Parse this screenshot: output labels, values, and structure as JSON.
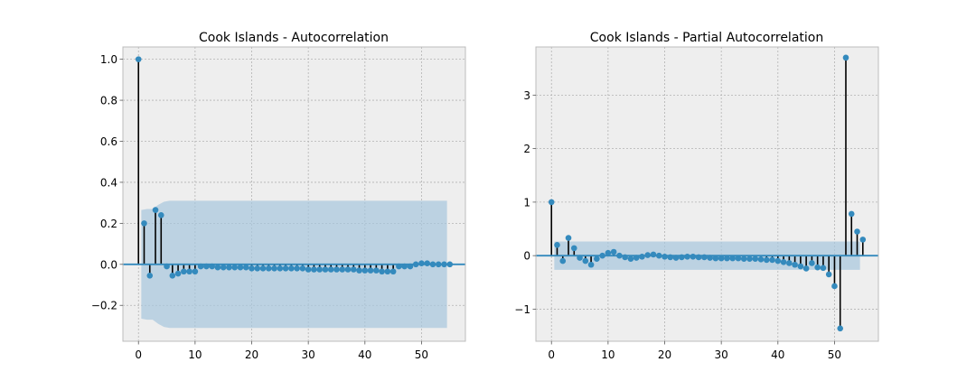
{
  "colors": {
    "figure_bg": "#ffffff",
    "axes_bg": "#eeeeee",
    "axes_edge": "#bcbcbc",
    "grid": "#b2b2b2",
    "stem": "#000000",
    "marker": "#348abd",
    "zero_line": "#348abd",
    "confidence_band": "#a7c6dd"
  },
  "chart_data": [
    {
      "type": "stem",
      "title": "Cook Islands - Autocorrelation",
      "xlabel": "",
      "ylabel": "",
      "xlim": [
        -2.75,
        57.75
      ],
      "ylim": [
        -0.375,
        1.06
      ],
      "xticks": [
        0,
        10,
        20,
        30,
        40,
        50
      ],
      "yticks": [
        -0.2,
        0.0,
        0.2,
        0.4,
        0.6,
        0.8,
        1.0
      ],
      "ytick_labels": [
        "−0.2",
        "0.0",
        "0.2",
        "0.4",
        "0.6",
        "0.8",
        "1.0"
      ],
      "grid": true,
      "lags": [
        0,
        1,
        2,
        3,
        4,
        5,
        6,
        7,
        8,
        9,
        10,
        11,
        12,
        13,
        14,
        15,
        16,
        17,
        18,
        19,
        20,
        21,
        22,
        23,
        24,
        25,
        26,
        27,
        28,
        29,
        30,
        31,
        32,
        33,
        34,
        35,
        36,
        37,
        38,
        39,
        40,
        41,
        42,
        43,
        44,
        45,
        46,
        47,
        48,
        49,
        50,
        51,
        52,
        53,
        54,
        55
      ],
      "values": [
        1.0,
        0.2,
        -0.055,
        0.265,
        0.24,
        -0.01,
        -0.055,
        -0.045,
        -0.035,
        -0.035,
        -0.035,
        -0.01,
        -0.01,
        -0.01,
        -0.015,
        -0.015,
        -0.015,
        -0.015,
        -0.015,
        -0.015,
        -0.02,
        -0.02,
        -0.02,
        -0.02,
        -0.02,
        -0.02,
        -0.02,
        -0.02,
        -0.02,
        -0.02,
        -0.025,
        -0.025,
        -0.025,
        -0.025,
        -0.025,
        -0.025,
        -0.025,
        -0.025,
        -0.025,
        -0.03,
        -0.03,
        -0.03,
        -0.03,
        -0.035,
        -0.035,
        -0.035,
        -0.01,
        -0.01,
        -0.01,
        0.0,
        0.005,
        0.005,
        0.0,
        0.0,
        0.0,
        0.0
      ],
      "confint": {
        "lags": [
          1,
          2,
          3,
          4,
          5,
          6,
          7,
          8,
          9,
          10,
          11,
          12,
          13,
          14,
          15,
          16,
          17,
          18,
          19,
          20,
          21,
          22,
          23,
          24,
          25,
          26,
          27,
          28,
          29,
          30,
          31,
          32,
          33,
          34,
          35,
          36,
          37,
          38,
          39,
          40,
          41,
          42,
          43,
          44,
          45,
          46,
          47,
          48,
          49,
          50,
          51,
          52,
          53,
          54,
          55
        ],
        "upper": [
          0.265,
          0.27,
          0.27,
          0.29,
          0.305,
          0.31,
          0.31,
          0.31,
          0.31,
          0.31,
          0.31,
          0.31,
          0.31,
          0.31,
          0.31,
          0.31,
          0.31,
          0.31,
          0.31,
          0.31,
          0.31,
          0.31,
          0.31,
          0.31,
          0.31,
          0.31,
          0.31,
          0.31,
          0.31,
          0.31,
          0.31,
          0.31,
          0.31,
          0.31,
          0.31,
          0.31,
          0.31,
          0.31,
          0.31,
          0.31,
          0.31,
          0.31,
          0.31,
          0.31,
          0.31,
          0.31,
          0.31,
          0.31,
          0.31,
          0.31,
          0.31,
          0.31,
          0.31,
          0.31,
          0.31
        ],
        "lower": [
          -0.265,
          -0.27,
          -0.27,
          -0.29,
          -0.305,
          -0.31,
          -0.31,
          -0.31,
          -0.31,
          -0.31,
          -0.31,
          -0.31,
          -0.31,
          -0.31,
          -0.31,
          -0.31,
          -0.31,
          -0.31,
          -0.31,
          -0.31,
          -0.31,
          -0.31,
          -0.31,
          -0.31,
          -0.31,
          -0.31,
          -0.31,
          -0.31,
          -0.31,
          -0.31,
          -0.31,
          -0.31,
          -0.31,
          -0.31,
          -0.31,
          -0.31,
          -0.31,
          -0.31,
          -0.31,
          -0.31,
          -0.31,
          -0.31,
          -0.31,
          -0.31,
          -0.31,
          -0.31,
          -0.31,
          -0.31,
          -0.31,
          -0.31,
          -0.31,
          -0.31,
          -0.31,
          -0.31,
          -0.31
        ]
      }
    },
    {
      "type": "stem",
      "title": "Cook Islands - Partial Autocorrelation",
      "xlabel": "",
      "ylabel": "",
      "xlim": [
        -2.75,
        57.75
      ],
      "ylim": [
        -1.6,
        3.9
      ],
      "xticks": [
        0,
        10,
        20,
        30,
        40,
        50
      ],
      "yticks": [
        -1,
        0,
        1,
        2,
        3
      ],
      "ytick_labels": [
        "−1",
        "0",
        "1",
        "2",
        "3"
      ],
      "grid": true,
      "lags": [
        0,
        1,
        2,
        3,
        4,
        5,
        6,
        7,
        8,
        9,
        10,
        11,
        12,
        13,
        14,
        15,
        16,
        17,
        18,
        19,
        20,
        21,
        22,
        23,
        24,
        25,
        26,
        27,
        28,
        29,
        30,
        31,
        32,
        33,
        34,
        35,
        36,
        37,
        38,
        39,
        40,
        41,
        42,
        43,
        44,
        45,
        46,
        47,
        48,
        49,
        50,
        51,
        52,
        53,
        54,
        55
      ],
      "values": [
        1.0,
        0.2,
        -0.1,
        0.33,
        0.14,
        -0.04,
        -0.1,
        -0.17,
        -0.06,
        0.0,
        0.05,
        0.07,
        0.0,
        -0.03,
        -0.06,
        -0.04,
        -0.02,
        0.01,
        0.02,
        0.0,
        -0.02,
        -0.03,
        -0.04,
        -0.03,
        -0.02,
        -0.02,
        -0.03,
        -0.03,
        -0.04,
        -0.05,
        -0.05,
        -0.05,
        -0.05,
        -0.05,
        -0.06,
        -0.06,
        -0.06,
        -0.07,
        -0.08,
        -0.08,
        -0.1,
        -0.12,
        -0.14,
        -0.17,
        -0.2,
        -0.24,
        -0.14,
        -0.22,
        -0.23,
        -0.35,
        -0.57,
        -1.36,
        3.7,
        0.78,
        0.45,
        0.3
      ],
      "confint": {
        "lags": [
          1,
          2,
          3,
          4,
          5,
          6,
          7,
          8,
          9,
          10,
          11,
          12,
          13,
          14,
          15,
          16,
          17,
          18,
          19,
          20,
          21,
          22,
          23,
          24,
          25,
          26,
          27,
          28,
          29,
          30,
          31,
          32,
          33,
          34,
          35,
          36,
          37,
          38,
          39,
          40,
          41,
          42,
          43,
          44,
          45,
          46,
          47,
          48,
          49,
          50,
          51,
          52,
          53,
          54,
          55
        ],
        "upper": [
          0.265,
          0.265,
          0.265,
          0.265,
          0.265,
          0.265,
          0.265,
          0.265,
          0.265,
          0.265,
          0.265,
          0.265,
          0.265,
          0.265,
          0.265,
          0.265,
          0.265,
          0.265,
          0.265,
          0.265,
          0.265,
          0.265,
          0.265,
          0.265,
          0.265,
          0.265,
          0.265,
          0.265,
          0.265,
          0.265,
          0.265,
          0.265,
          0.265,
          0.265,
          0.265,
          0.265,
          0.265,
          0.265,
          0.265,
          0.265,
          0.265,
          0.265,
          0.265,
          0.265,
          0.265,
          0.265,
          0.265,
          0.265,
          0.265,
          0.265,
          0.265,
          0.265,
          0.265,
          0.265,
          0.265
        ],
        "lower": [
          -0.265,
          -0.265,
          -0.265,
          -0.265,
          -0.265,
          -0.265,
          -0.265,
          -0.265,
          -0.265,
          -0.265,
          -0.265,
          -0.265,
          -0.265,
          -0.265,
          -0.265,
          -0.265,
          -0.265,
          -0.265,
          -0.265,
          -0.265,
          -0.265,
          -0.265,
          -0.265,
          -0.265,
          -0.265,
          -0.265,
          -0.265,
          -0.265,
          -0.265,
          -0.265,
          -0.265,
          -0.265,
          -0.265,
          -0.265,
          -0.265,
          -0.265,
          -0.265,
          -0.265,
          -0.265,
          -0.265,
          -0.265,
          -0.265,
          -0.265,
          -0.265,
          -0.265,
          -0.265,
          -0.265,
          -0.265,
          -0.265,
          -0.265,
          -0.265,
          -0.265,
          -0.265,
          -0.265,
          -0.265
        ]
      }
    }
  ]
}
